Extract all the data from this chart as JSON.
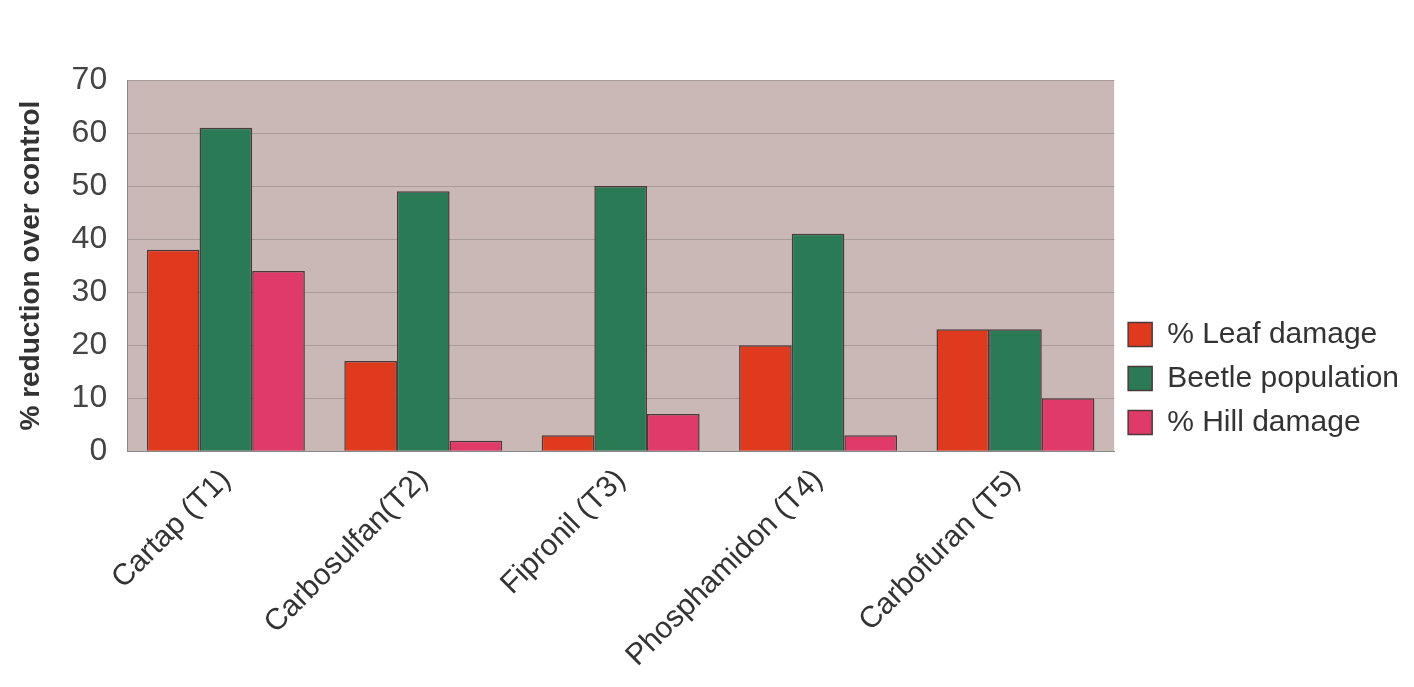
{
  "chart_data": {
    "type": "bar",
    "ylabel": "% reduction over control",
    "categories": [
      "Cartap (T1)",
      "Carbosulfan(T2)",
      "Fipronil (T3)",
      "Phosphamidon (T4)",
      "Carbofuran (T5)"
    ],
    "series": [
      {
        "name": "% Leaf damage",
        "color": "#e03a1e",
        "values": [
          38,
          17,
          3,
          20,
          23
        ]
      },
      {
        "name": "Beetle population",
        "color": "#2a7a55",
        "values": [
          61,
          49,
          50,
          41,
          23
        ]
      },
      {
        "name": "% Hill damage",
        "color": "#e03a68",
        "values": [
          34,
          2,
          7,
          3,
          10
        ]
      }
    ],
    "ylim": [
      0,
      70
    ],
    "yticks": [
      0,
      10,
      20,
      30,
      40,
      50,
      60,
      70
    ],
    "grid": "y",
    "legend": "right"
  }
}
